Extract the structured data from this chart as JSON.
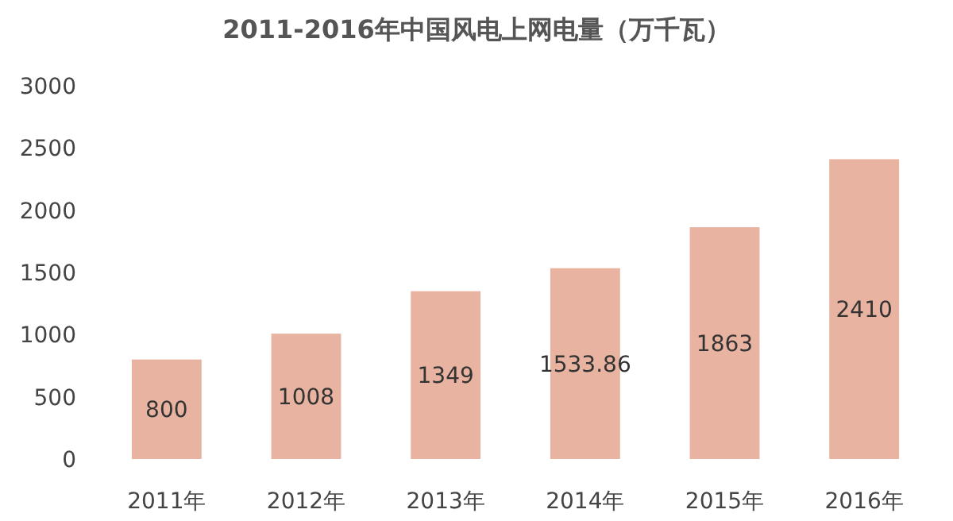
{
  "chart_data": {
    "type": "bar",
    "title": "2011-2016年中国风电上网电量（万千瓦）",
    "categories": [
      "2011年",
      "2012年",
      "2013年",
      "2014年",
      "2015年",
      "2016年"
    ],
    "values": [
      800,
      1008,
      1349,
      1533.86,
      1863,
      2410
    ],
    "color": "#e8b3a0",
    "ylim": [
      0,
      3000
    ],
    "yticks": [
      0,
      500,
      1000,
      1500,
      2000,
      2500,
      3000
    ],
    "data_labels": true
  }
}
